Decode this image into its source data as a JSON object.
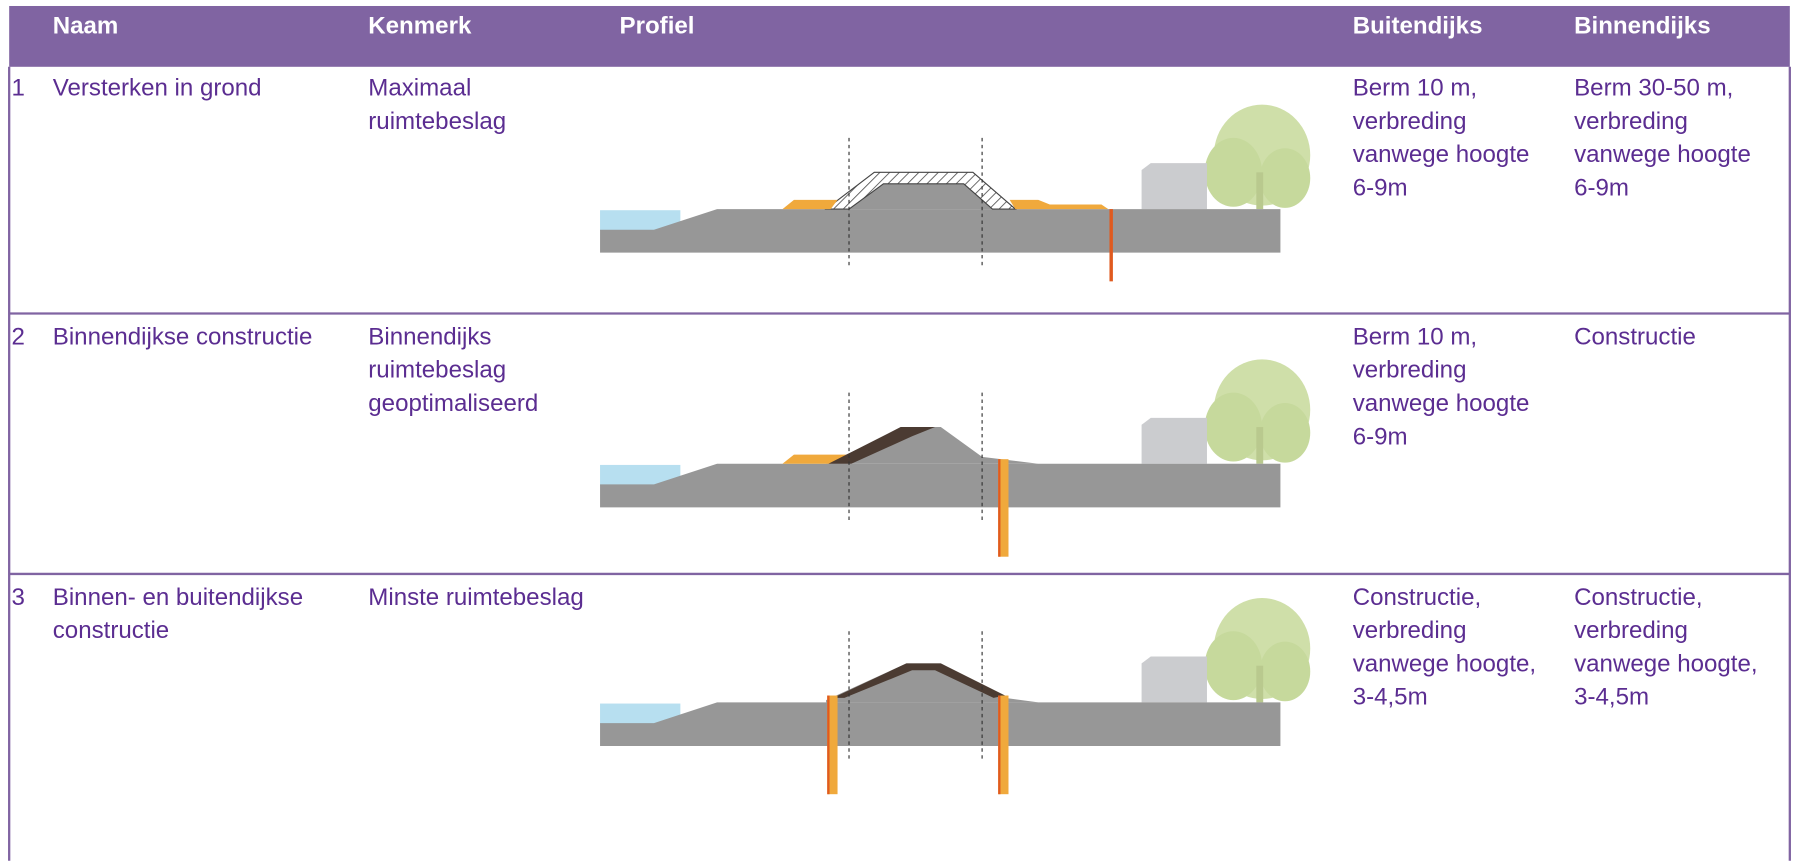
{
  "header": [
    "Naam",
    "Kenmerk",
    "Profiel",
    "Buitendijks",
    "Binnendijks"
  ],
  "rows": [
    {
      "number": "1",
      "naam": [
        "Versterken in grond"
      ],
      "kenmerk": [
        "Maximaal",
        "ruimtebeslag"
      ],
      "buitendijks": [
        "Berm 10 m,",
        "verbreding",
        "vanwege hoogte",
        "6-9m"
      ],
      "binnendijks": [
        "Berm 30-50 m,",
        "verbreding",
        "vanwege hoogte",
        "6-9m"
      ]
    },
    {
      "number": "2",
      "naam": [
        "Binnendijkse constructie"
      ],
      "kenmerk": [
        "Binnendijks",
        "ruimtebeslag",
        "geoptimaliseerd"
      ],
      "buitendijks": [
        "Berm 10 m,",
        "verbreding",
        "vanwege hoogte",
        "6-9m"
      ],
      "binnendijks": [
        "Constructie"
      ]
    },
    {
      "number": "3",
      "naam": [
        "Binnen- en buitendijkse",
        "constructie"
      ],
      "kenmerk": [
        "Minste ruimtebeslag"
      ],
      "buitendijks": [
        "Constructie,",
        "verbreding",
        "vanwege hoogte,",
        "3-4,5m"
      ],
      "binnendijks": [
        "Constructie,",
        "verbreding",
        "vanwege hoogte,",
        "3-4,5m"
      ]
    }
  ]
}
